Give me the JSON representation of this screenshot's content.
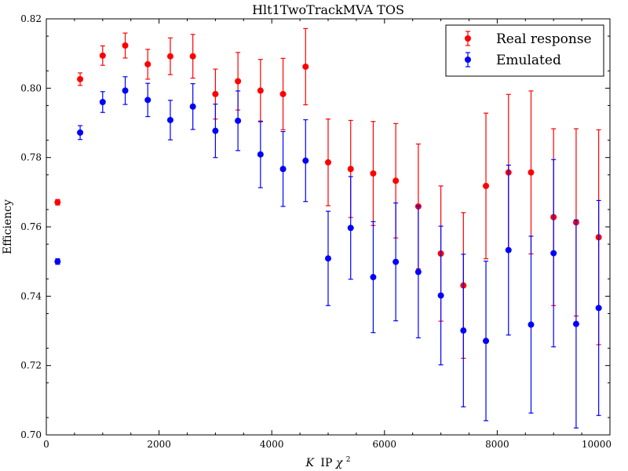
{
  "chart_data": {
    "type": "scatter",
    "title": "Hlt1TwoTrackMVA TOS",
    "xlabel_italic": "K",
    "xlabel_main": "IP",
    "xlabel_chi": "χ",
    "xlabel_sup": "2",
    "ylabel": "Efficiency",
    "xlim": [
      0,
      10000
    ],
    "ylim": [
      0.7,
      0.82
    ],
    "xticks": [
      0,
      2000,
      4000,
      6000,
      8000,
      10000
    ],
    "yticks": [
      0.7,
      0.72,
      0.74,
      0.76,
      0.78,
      0.8,
      0.82
    ],
    "xtick_labels": [
      "0",
      "2000",
      "4000",
      "6000",
      "8000",
      "10000"
    ],
    "ytick_labels": [
      "0.70",
      "0.72",
      "0.74",
      "0.76",
      "0.78",
      "0.80",
      "0.82"
    ],
    "grid": false,
    "legend_position": "top-right",
    "x": [
      200,
      600,
      1000,
      1400,
      1800,
      2200,
      2600,
      3000,
      3400,
      3800,
      4200,
      4600,
      5000,
      5400,
      5800,
      6200,
      6600,
      7000,
      7400,
      7800,
      8200,
      8600,
      9000,
      9400,
      9800
    ],
    "series": [
      {
        "name": "Real response",
        "color": "#ff0000",
        "values": [
          0.7671,
          0.8026,
          0.8094,
          0.8123,
          0.8069,
          0.8092,
          0.8092,
          0.7983,
          0.802,
          0.7993,
          0.7983,
          0.8062,
          0.7786,
          0.7767,
          0.7754,
          0.7733,
          0.7659,
          0.7523,
          0.7431,
          0.7718,
          0.7757,
          0.7757,
          0.7628,
          0.7613,
          0.757
        ],
        "errors": [
          0.0008,
          0.0018,
          0.0028,
          0.0036,
          0.0043,
          0.0053,
          0.0063,
          0.0072,
          0.0083,
          0.009,
          0.0103,
          0.011,
          0.0125,
          0.014,
          0.015,
          0.0165,
          0.018,
          0.0195,
          0.021,
          0.021,
          0.0225,
          0.0235,
          0.0255,
          0.027,
          0.031
        ]
      },
      {
        "name": "Emulated",
        "color": "#0000ff",
        "values": [
          0.75,
          0.7872,
          0.796,
          0.7993,
          0.7966,
          0.7908,
          0.7947,
          0.7877,
          0.7906,
          0.7809,
          0.7767,
          0.7791,
          0.7509,
          0.7597,
          0.7455,
          0.7499,
          0.747,
          0.7402,
          0.7301,
          0.7271,
          0.7533,
          0.7318,
          0.7524,
          0.732,
          0.7366
        ],
        "errors": [
          0.0008,
          0.002,
          0.003,
          0.004,
          0.0048,
          0.0057,
          0.0066,
          0.0077,
          0.0086,
          0.0096,
          0.0108,
          0.0118,
          0.0136,
          0.0148,
          0.016,
          0.017,
          0.019,
          0.02,
          0.022,
          0.023,
          0.0245,
          0.0255,
          0.027,
          0.03,
          0.031
        ]
      }
    ]
  }
}
